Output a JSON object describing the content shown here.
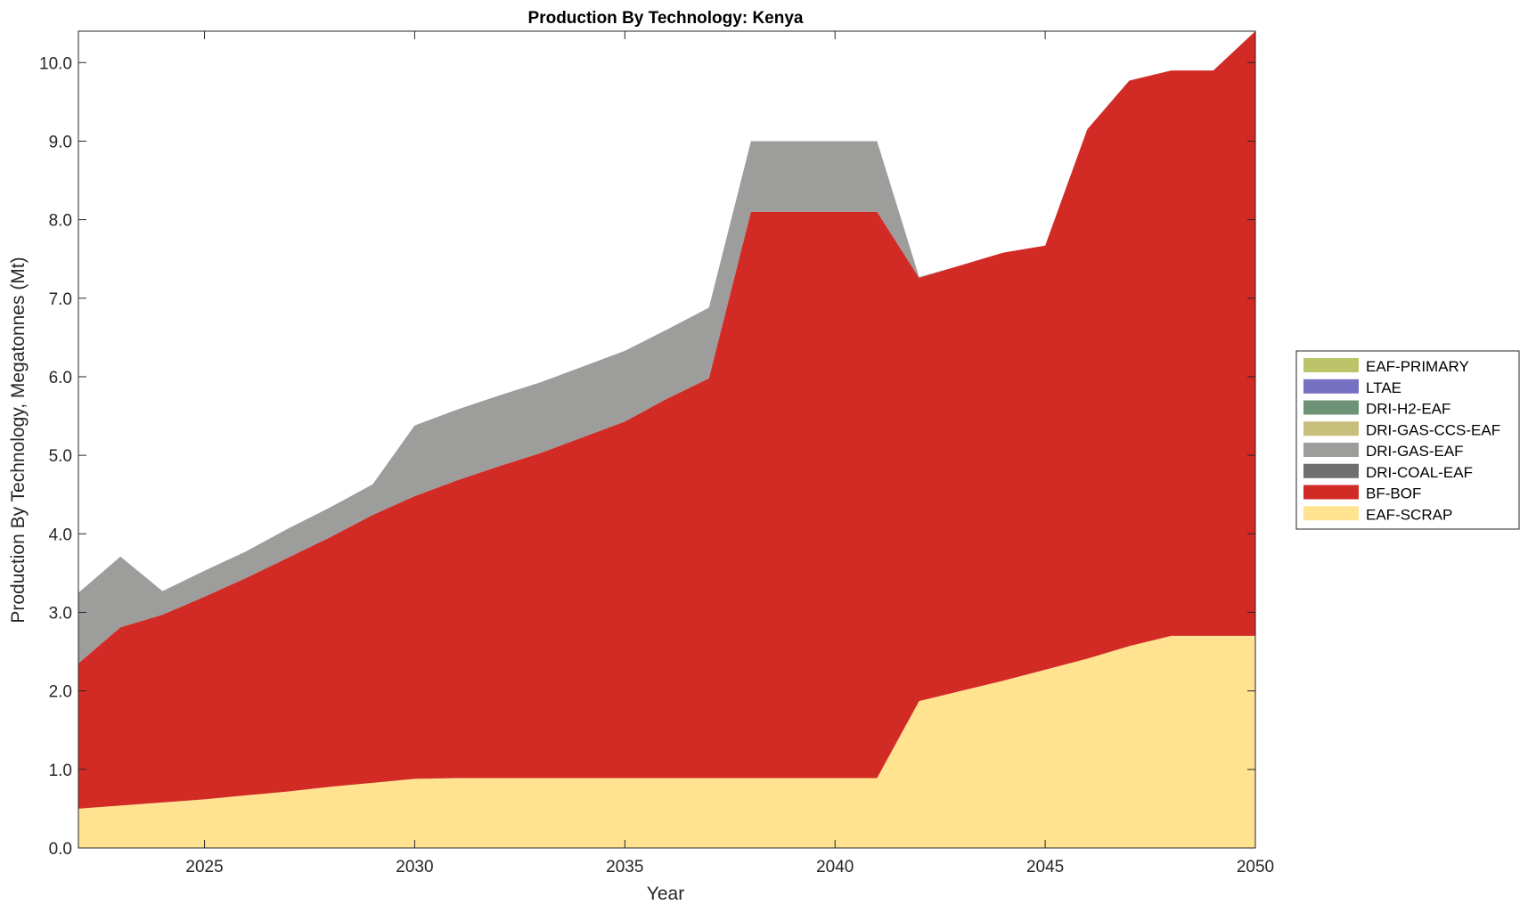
{
  "chart_data": {
    "type": "area",
    "stacked": true,
    "title": "Production By Technology: Kenya",
    "xlabel": "Year",
    "ylabel": "Production By Technology, Megatonnes (Mt)",
    "xlim": [
      2022,
      2050
    ],
    "ylim": [
      0,
      10.4
    ],
    "xticks": [
      2025,
      2030,
      2035,
      2040,
      2045,
      2050
    ],
    "yticks": [
      0.0,
      1.0,
      2.0,
      3.0,
      4.0,
      5.0,
      6.0,
      7.0,
      8.0,
      9.0,
      10.0
    ],
    "ytick_labels": [
      "0.0",
      "1.0",
      "2.0",
      "3.0",
      "4.0",
      "5.0",
      "6.0",
      "7.0",
      "8.0",
      "9.0",
      "10.0"
    ],
    "grid": false,
    "legend_position": "right",
    "x": [
      2022,
      2023,
      2024,
      2025,
      2026,
      2027,
      2028,
      2029,
      2030,
      2031,
      2032,
      2033,
      2034,
      2035,
      2036,
      2037,
      2038,
      2039,
      2040,
      2041,
      2042,
      2043,
      2044,
      2045,
      2046,
      2047,
      2048,
      2049,
      2050
    ],
    "series": [
      {
        "name": "EAF-SCRAP",
        "color": "#FFE391",
        "values": [
          0.5,
          0.54,
          0.58,
          0.62,
          0.67,
          0.72,
          0.78,
          0.83,
          0.88,
          0.89,
          0.89,
          0.89,
          0.89,
          0.89,
          0.89,
          0.89,
          0.89,
          0.89,
          0.89,
          0.89,
          1.87,
          2.0,
          2.13,
          2.27,
          2.41,
          2.57,
          2.7,
          2.7,
          2.7
        ]
      },
      {
        "name": "BF-BOF",
        "color": "#D22B25",
        "values": [
          1.85,
          2.27,
          2.39,
          2.58,
          2.77,
          2.98,
          3.18,
          3.41,
          3.6,
          3.79,
          3.97,
          4.14,
          4.34,
          4.54,
          4.83,
          5.09,
          7.21,
          7.21,
          7.21,
          7.21,
          5.39,
          5.42,
          5.45,
          5.4,
          6.74,
          7.2,
          7.2,
          7.2,
          7.7
        ]
      },
      {
        "name": "DRI-COAL-EAF",
        "color": "#6F6F6F",
        "values": [
          0,
          0,
          0,
          0,
          0,
          0,
          0,
          0,
          0,
          0,
          0,
          0,
          0,
          0,
          0,
          0,
          0,
          0,
          0,
          0,
          0,
          0,
          0,
          0,
          0,
          0,
          0,
          0,
          0
        ]
      },
      {
        "name": "DRI-GAS-EAF",
        "color": "#9D9D9C",
        "values": [
          0.9,
          0.9,
          0.3,
          0.33,
          0.34,
          0.37,
          0.38,
          0.39,
          0.9,
          0.9,
          0.9,
          0.9,
          0.9,
          0.9,
          0.88,
          0.9,
          0.9,
          0.9,
          0.9,
          0.9,
          0.01,
          0,
          0,
          0,
          0,
          0,
          0,
          0,
          0
        ]
      },
      {
        "name": "DRI-GAS-CCS-EAF",
        "color": "#C8BE7C",
        "values": [
          0,
          0,
          0,
          0,
          0,
          0,
          0,
          0,
          0,
          0,
          0,
          0,
          0,
          0,
          0,
          0,
          0,
          0,
          0,
          0,
          0,
          0,
          0,
          0,
          0,
          0,
          0,
          0,
          0
        ]
      },
      {
        "name": "DRI-H2-EAF",
        "color": "#6E9275",
        "values": [
          0,
          0,
          0,
          0,
          0,
          0,
          0,
          0,
          0,
          0,
          0,
          0,
          0,
          0,
          0,
          0,
          0,
          0,
          0,
          0,
          0,
          0,
          0,
          0,
          0,
          0,
          0,
          0,
          0
        ]
      },
      {
        "name": "LTAE",
        "color": "#7670C2",
        "values": [
          0,
          0,
          0,
          0,
          0,
          0,
          0,
          0,
          0,
          0,
          0,
          0,
          0,
          0,
          0,
          0,
          0,
          0,
          0,
          0,
          0,
          0,
          0,
          0,
          0,
          0,
          0,
          0,
          0
        ]
      },
      {
        "name": "EAF-PRIMARY",
        "color": "#BCC46A",
        "values": [
          0,
          0,
          0,
          0,
          0,
          0,
          0,
          0,
          0,
          0,
          0,
          0,
          0,
          0,
          0,
          0,
          0,
          0,
          0,
          0,
          0,
          0,
          0,
          0,
          0,
          0,
          0,
          0,
          0
        ]
      }
    ],
    "legend_order": [
      "EAF-PRIMARY",
      "LTAE",
      "DRI-H2-EAF",
      "DRI-GAS-CCS-EAF",
      "DRI-GAS-EAF",
      "DRI-COAL-EAF",
      "BF-BOF",
      "EAF-SCRAP"
    ]
  }
}
